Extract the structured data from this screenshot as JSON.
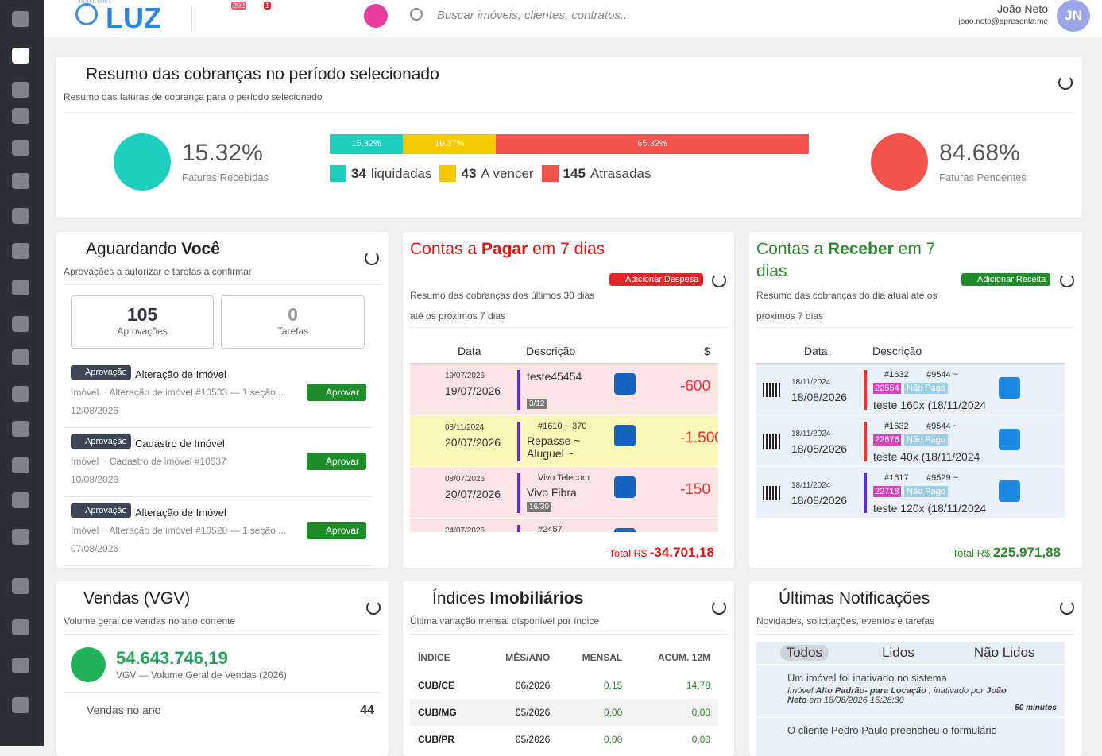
{
  "header": {
    "brand_small": "IMOBILIÁRIA",
    "brand": "LUZ",
    "badges": [
      "202",
      "1"
    ],
    "search_placeholder": "Buscar imóveis, clientes, contratos...",
    "user_name": "João Neto",
    "user_email": "joao.neto@apresenta.me",
    "user_initials": "JN"
  },
  "summary": {
    "title": "Resumo das cobranças no período selecionado",
    "subtitle": "Resumo das faturas de cobrança para o período selecionado",
    "received": {
      "value": "15.32%",
      "label": "Faturas Recebidas"
    },
    "pending": {
      "value": "84.68%",
      "label": "Faturas Pendentes"
    },
    "bar": [
      {
        "value": 15.32,
        "label": "15.32%",
        "color": "#1ecfc0"
      },
      {
        "value": 19.37,
        "label": "19.37%",
        "color": "#f5c900"
      },
      {
        "value": 65.32,
        "label": "65.32%",
        "color": "#f4524d"
      }
    ],
    "legend": [
      {
        "count": 34,
        "label": "liquidadas",
        "color": "#1ecfc0"
      },
      {
        "count": 43,
        "label": "A vencer",
        "color": "#f5c900"
      },
      {
        "count": 145,
        "label": "Atrasadas",
        "color": "#f4524d"
      }
    ]
  },
  "awaiting": {
    "title": "Aguardando",
    "title_bold": "Você",
    "subtitle": "Aprovações a autorizar e tarefas a confirmar",
    "approvals": {
      "count": 105,
      "label": "Aprovações"
    },
    "tasks": {
      "count": 0,
      "label": "Tarefas"
    },
    "items": [
      {
        "tag": "Aprovação",
        "title": "Alteração de Imóvel",
        "desc": "Imóvel ~ Alteração de imóvel #10533 — 1 seção ...",
        "date": "12/08/2026",
        "button": "Aprovar"
      },
      {
        "tag": "Aprovação",
        "title": "Cadastro de Imóvel",
        "desc": "Imóvel ~ Cadastro de imóvel #10537",
        "date": "10/08/2026",
        "button": "Aprovar"
      },
      {
        "tag": "Aprovação",
        "title": "Alteração de Imóvel",
        "desc": "Imóvel ~ Alteração de imóvel #10528 — 1 seção ...",
        "date": "07/08/2026",
        "button": "Aprovar"
      }
    ]
  },
  "payables": {
    "title": "Contas a",
    "title_bold": "Pagar",
    "title_end": "em 7 dias",
    "button": "Adicionar Despesa",
    "subtitle": "Resumo das cobranças dos últimos 30 dias até os próximos 7 dias",
    "columns": [
      "Data",
      "Descrição",
      "$"
    ],
    "rows": [
      {
        "date_small": "19/07/2026",
        "date": "19/07/2026",
        "desc": "teste45454",
        "parcel": "3/12",
        "amount": "-600"
      },
      {
        "date_small": "08/11/2024",
        "date": "20/07/2026",
        "ref": "#1610 ~ 370",
        "desc": "Repasse ~ Aluguel ~",
        "amount": "-1.500"
      },
      {
        "date_small": "08/07/2026",
        "ref": "Vivo Telecom",
        "date": "20/07/2026",
        "desc": "Vivo Fibra",
        "parcel": "16/30",
        "amount": "-150"
      },
      {
        "date_small": "24/07/2026",
        "ref": "#2457"
      }
    ],
    "total_label": "Total R$",
    "total": "-34.701,18"
  },
  "receivables": {
    "title": "Contas a",
    "title_bold": "Receber",
    "title_end": "em 7 dias",
    "button": "Adicionar Receita",
    "subtitle": "Resumo das cobranças do dia atual até os próximos 7 dias",
    "columns": [
      "Data",
      "Descrição"
    ],
    "rows": [
      {
        "date_small": "18/11/2024",
        "date": "18/08/2026",
        "ref": "#1632",
        "property": "#9544 ~",
        "code": "22554",
        "status": "Não Pago",
        "desc": "teste 160x (18/11/2024"
      },
      {
        "date_small": "18/11/2024",
        "date": "18/08/2026",
        "ref": "#1632",
        "property": "#9544 ~",
        "code": "22676",
        "status": "Não Pago",
        "desc": "teste 40x (18/11/2024"
      },
      {
        "date_small": "18/11/2024",
        "date": "18/08/2026",
        "ref": "#1617",
        "property": "#9529 ~",
        "code": "22718",
        "status": "Não Pago",
        "desc": "teste 120x (18/11/2024"
      }
    ],
    "total_label": "Total R$",
    "total": "225.971,88"
  },
  "sales": {
    "title": "Vendas (VGV)",
    "subtitle": "Volume geral de vendas no ano corrente",
    "amount": "54.643.746,19",
    "caption": "VGV — Volume Geral de Vendas (2026)",
    "rows": [
      {
        "label": "Vendas no ano",
        "value": 44
      }
    ]
  },
  "indices": {
    "title": "Índices",
    "title_bold": "Imobiliários",
    "subtitle": "Última variação mensal disponível por índice",
    "columns": [
      "ÍNDICE",
      "MÊS/ANO",
      "MENSAL",
      "ACUM. 12M"
    ],
    "rows": [
      [
        "CUB/CE",
        "06/2026",
        "0,15",
        "14,78"
      ],
      [
        "CUB/MG",
        "05/2026",
        "0,00",
        "0,00"
      ],
      [
        "CUB/PR",
        "05/2026",
        "0,00",
        "0,00"
      ]
    ]
  },
  "notifications": {
    "title": "Últimas Notificações",
    "subtitle": "Novidades, solicitações, eventos e tarefas",
    "tabs": [
      "Todos",
      "Lidos",
      "Não Lidos"
    ],
    "items": [
      {
        "title": "Um imóvel foi inativado no sistema",
        "detail": [
          "Imóvel",
          "Alto Padrão- para Locação",
          ", inativado por",
          "João Neto",
          "em 18/08/2026 15:28:30"
        ],
        "time": "50 minutos"
      },
      {
        "title": "O cliente Pedro Paulo preencheu o formulário"
      }
    ]
  }
}
